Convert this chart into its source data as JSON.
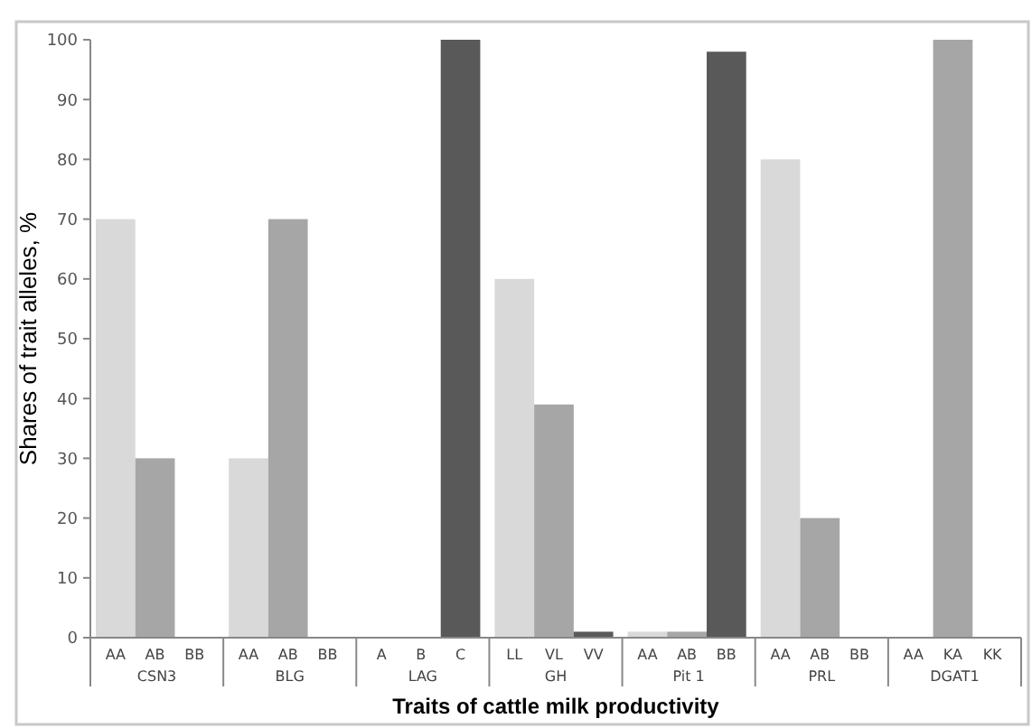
{
  "chart_data": {
    "type": "bar",
    "xlabel": "Traits of cattle milk productivity",
    "ylabel": "Shares of trait alleles, %",
    "categories": [
      "AA",
      "AB",
      "BB",
      "AA",
      "AB",
      "BB",
      "A",
      "B",
      "C",
      "LL",
      "VL",
      "VV",
      "AA",
      "AB",
      "BB",
      "AA",
      "AB",
      "BB",
      "AA",
      "KA",
      "KK"
    ],
    "values": [
      70,
      30,
      0,
      30,
      70,
      0,
      0,
      0,
      100,
      60,
      39,
      1,
      1,
      1,
      98,
      80,
      20,
      0,
      0,
      100,
      0
    ],
    "colors": [
      "#d9d9d9",
      "#a6a6a6",
      "#595959",
      "#d9d9d9",
      "#a6a6a6",
      "#595959",
      "#d9d9d9",
      "#a6a6a6",
      "#595959",
      "#d9d9d9",
      "#a6a6a6",
      "#595959",
      "#d9d9d9",
      "#a6a6a6",
      "#595959",
      "#d9d9d9",
      "#a6a6a6",
      "#595959",
      "#d9d9d9",
      "#a6a6a6",
      "#595959"
    ],
    "annotations": [
      "CSN3",
      "BLG",
      "LAG",
      "GH",
      "Pit 1",
      "PRL",
      "DGAT1"
    ],
    "ylim": [
      0,
      100
    ],
    "yticks": [
      0,
      10,
      20,
      30,
      40,
      50,
      60,
      70,
      80,
      90,
      100
    ]
  }
}
